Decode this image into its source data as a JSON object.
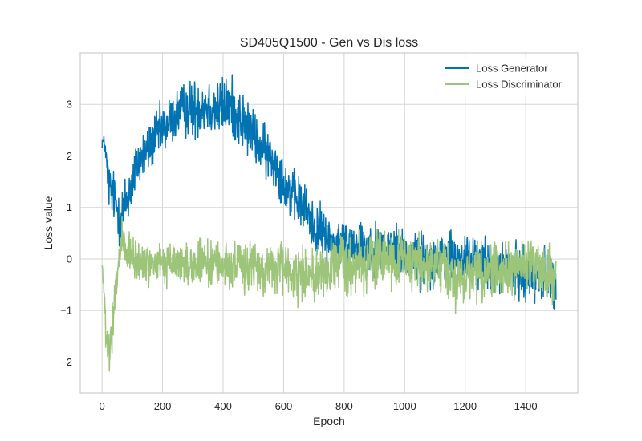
{
  "chart_data": {
    "type": "line",
    "title": "SD405Q1500 - Gen vs Dis loss",
    "xlabel": "Epoch",
    "ylabel": "Loss value",
    "xlim": [
      -72,
      1572
    ],
    "ylim": [
      -2.6,
      4.0
    ],
    "xticks": [
      0,
      200,
      400,
      600,
      800,
      1000,
      1200,
      1400
    ],
    "xtick_labels": [
      "0",
      "200",
      "400",
      "600",
      "800",
      "1000",
      "1200",
      "1400"
    ],
    "yticks": [
      -2,
      -1,
      0,
      1,
      2,
      3
    ],
    "ytick_labels": [
      "−2",
      "−1",
      "0",
      "1",
      "2",
      "3"
    ],
    "grid": true,
    "legend_position": "top-right",
    "series": [
      {
        "name": "Loss Generator",
        "color": "#0173b2",
        "x": [
          0,
          10,
          20,
          30,
          40,
          50,
          60,
          80,
          100,
          120,
          150,
          180,
          200,
          230,
          260,
          300,
          340,
          380,
          420,
          460,
          500,
          520,
          550,
          580,
          600,
          620,
          650,
          680,
          700,
          730,
          760,
          800,
          850,
          900,
          950,
          1000,
          1050,
          1100,
          1150,
          1200,
          1250,
          1300,
          1350,
          1400,
          1450,
          1480,
          1500
        ],
        "y": [
          2.3,
          2.2,
          1.5,
          1.3,
          1.2,
          1.0,
          0.8,
          1.1,
          1.5,
          1.9,
          2.1,
          2.4,
          2.5,
          2.7,
          2.9,
          2.9,
          3.0,
          2.9,
          3.0,
          2.7,
          2.4,
          2.2,
          2.0,
          1.8,
          1.5,
          1.3,
          1.1,
          0.9,
          0.6,
          0.5,
          0.3,
          0.3,
          0.3,
          0.2,
          0.2,
          0.1,
          0.0,
          0.0,
          0.0,
          0.0,
          -0.1,
          -0.2,
          -0.2,
          -0.3,
          -0.3,
          -0.4,
          -0.5
        ],
        "noise": [
          0.1,
          0.1,
          0.3,
          0.3,
          0.3,
          0.3,
          0.35,
          0.35,
          0.35,
          0.3,
          0.3,
          0.3,
          0.3,
          0.3,
          0.3,
          0.35,
          0.35,
          0.35,
          0.35,
          0.35,
          0.3,
          0.3,
          0.3,
          0.3,
          0.3,
          0.3,
          0.3,
          0.3,
          0.3,
          0.3,
          0.3,
          0.3,
          0.3,
          0.3,
          0.3,
          0.3,
          0.3,
          0.3,
          0.3,
          0.3,
          0.3,
          0.3,
          0.3,
          0.3,
          0.3,
          0.3,
          0.3
        ]
      },
      {
        "name": "Loss Discriminator",
        "color": "#9dc57a",
        "x": [
          0,
          5,
          15,
          25,
          35,
          45,
          55,
          65,
          80,
          100,
          150,
          200,
          300,
          400,
          500,
          550,
          600,
          650,
          700,
          750,
          800,
          850,
          900,
          950,
          1000,
          1050,
          1100,
          1150,
          1200,
          1250,
          1300,
          1350,
          1400,
          1450,
          1500
        ],
        "y": [
          -0.1,
          -0.5,
          -1.7,
          -1.9,
          -1.3,
          -0.7,
          0.0,
          0.3,
          0.1,
          0.0,
          -0.1,
          -0.1,
          -0.1,
          -0.1,
          -0.15,
          -0.2,
          -0.2,
          -0.3,
          -0.3,
          -0.2,
          -0.1,
          -0.1,
          0.0,
          0.0,
          0.0,
          -0.1,
          -0.2,
          -0.3,
          -0.3,
          -0.2,
          -0.2,
          -0.2,
          -0.1,
          -0.2,
          -0.3
        ],
        "noise": [
          0.05,
          0.1,
          0.25,
          0.3,
          0.35,
          0.3,
          0.25,
          0.3,
          0.25,
          0.25,
          0.25,
          0.25,
          0.25,
          0.25,
          0.3,
          0.3,
          0.3,
          0.3,
          0.3,
          0.35,
          0.35,
          0.35,
          0.35,
          0.35,
          0.35,
          0.35,
          0.35,
          0.35,
          0.35,
          0.35,
          0.35,
          0.35,
          0.35,
          0.35,
          0.35
        ]
      }
    ]
  }
}
